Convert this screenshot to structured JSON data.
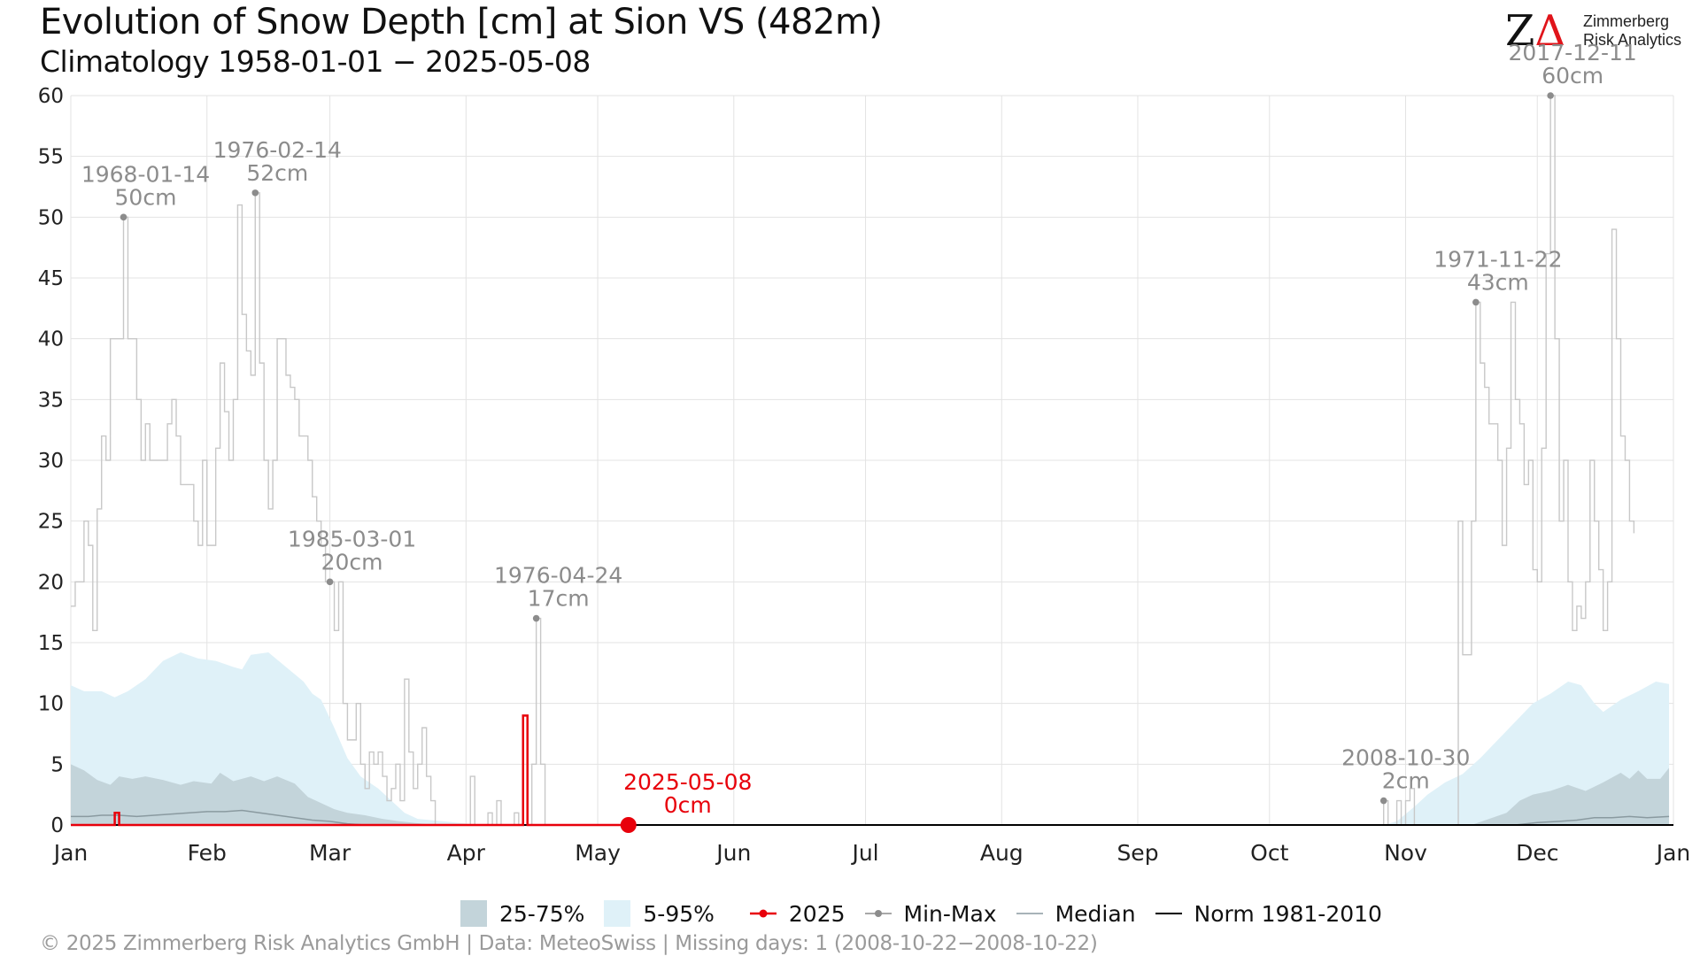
{
  "header": {
    "title": "Evolution of Snow Depth [cm] at Sion  VS (482m)",
    "subtitle": "Climatology 1958-01-01 − 2025-05-08"
  },
  "logo": {
    "mark_z": "Z",
    "mark_delta": "Δ",
    "line1": "Zimmerberg",
    "line2": "Risk Analytics"
  },
  "colors": {
    "band_25_75": "#c3d4da",
    "band_5_95": "#dff1f8",
    "current_year": "#e8000b",
    "minmax": "#c8c8c8",
    "minmax_point": "#8c8c8c",
    "median": "#8a9aa0",
    "norm": "#000000",
    "annotation": "#8c8c8c"
  },
  "legend": {
    "items": [
      {
        "label": "25-75%",
        "kind": "band_iqr"
      },
      {
        "label": "5-95%",
        "kind": "band_outer"
      },
      {
        "label": "2025",
        "kind": "current"
      },
      {
        "label": "Min-Max",
        "kind": "minmax"
      },
      {
        "label": "Median",
        "kind": "median"
      },
      {
        "label": "Norm 1981-2010",
        "kind": "norm"
      }
    ]
  },
  "footer": "©  2025 Zimmerberg Risk Analytics GmbH | Data: MeteoSwiss | Missing days: 1 (2008-10-22−2008-10-22)",
  "chart_data": {
    "type": "area",
    "xlabel": "",
    "ylabel": "",
    "ylim": [
      0,
      60
    ],
    "xlim_day": [
      1,
      366
    ],
    "grid": true,
    "legend_position": "bottom",
    "y_ticks": [
      0,
      5,
      10,
      15,
      20,
      25,
      30,
      35,
      40,
      45,
      50,
      55,
      60
    ],
    "x_ticks": [
      {
        "label": "Jan",
        "day": 1
      },
      {
        "label": "Feb",
        "day": 32
      },
      {
        "label": "Mar",
        "day": 60
      },
      {
        "label": "Apr",
        "day": 91
      },
      {
        "label": "May",
        "day": 121
      },
      {
        "label": "Jun",
        "day": 152
      },
      {
        "label": "Jul",
        "day": 182
      },
      {
        "label": "Aug",
        "day": 213
      },
      {
        "label": "Sep",
        "day": 244
      },
      {
        "label": "Oct",
        "day": 274
      },
      {
        "label": "Nov",
        "day": 305
      },
      {
        "label": "Dec",
        "day": 335
      },
      {
        "label": "Jan",
        "day": 366
      }
    ],
    "band_5_95": {
      "name": "5-95%",
      "points": [
        [
          1,
          11.5
        ],
        [
          4,
          11
        ],
        [
          8,
          11
        ],
        [
          11,
          10.5
        ],
        [
          14,
          11
        ],
        [
          18,
          12
        ],
        [
          22,
          13.5
        ],
        [
          26,
          14.2
        ],
        [
          30,
          13.7
        ],
        [
          34,
          13.5
        ],
        [
          38,
          13
        ],
        [
          40,
          12.8
        ],
        [
          42,
          14
        ],
        [
          46,
          14.2
        ],
        [
          50,
          13
        ],
        [
          54,
          11.8
        ],
        [
          56,
          10.8
        ],
        [
          58,
          10.3
        ],
        [
          61,
          8
        ],
        [
          64,
          5.5
        ],
        [
          67,
          4
        ],
        [
          71,
          3
        ],
        [
          74,
          2
        ],
        [
          77,
          1
        ],
        [
          80,
          0.5
        ],
        [
          83,
          0.4
        ],
        [
          86,
          0.3
        ],
        [
          90,
          0.15
        ],
        [
          95,
          0
        ],
        [
          300,
          0
        ],
        [
          303,
          0.3
        ],
        [
          307,
          1.5
        ],
        [
          310,
          2.5
        ],
        [
          314,
          3.5
        ],
        [
          318,
          4.2
        ],
        [
          322,
          5.5
        ],
        [
          326,
          7
        ],
        [
          330,
          8.5
        ],
        [
          334,
          10
        ],
        [
          338,
          10.8
        ],
        [
          342,
          11.8
        ],
        [
          345,
          11.5
        ],
        [
          348,
          10
        ],
        [
          350,
          9.3
        ],
        [
          354,
          10.3
        ],
        [
          358,
          11
        ],
        [
          362,
          11.8
        ],
        [
          365,
          11.6
        ]
      ]
    },
    "band_25_75": {
      "name": "25-75%",
      "points": [
        [
          1,
          5
        ],
        [
          4,
          4.5
        ],
        [
          7,
          3.7
        ],
        [
          10,
          3.3
        ],
        [
          12,
          4
        ],
        [
          15,
          3.8
        ],
        [
          18,
          4
        ],
        [
          22,
          3.7
        ],
        [
          26,
          3.3
        ],
        [
          29,
          3.6
        ],
        [
          33,
          3.4
        ],
        [
          35,
          4.3
        ],
        [
          38,
          3.6
        ],
        [
          42,
          4
        ],
        [
          45,
          3.6
        ],
        [
          48,
          4
        ],
        [
          52,
          3.4
        ],
        [
          55,
          2.3
        ],
        [
          58,
          1.8
        ],
        [
          61,
          1.3
        ],
        [
          64,
          1
        ],
        [
          68,
          0.8
        ],
        [
          72,
          0.5
        ],
        [
          76,
          0.3
        ],
        [
          80,
          0.15
        ],
        [
          84,
          0
        ],
        [
          320,
          0
        ],
        [
          324,
          0.5
        ],
        [
          328,
          1
        ],
        [
          331,
          2
        ],
        [
          334,
          2.5
        ],
        [
          338,
          2.8
        ],
        [
          342,
          3.3
        ],
        [
          346,
          2.8
        ],
        [
          350,
          3.5
        ],
        [
          354,
          4.3
        ],
        [
          356,
          3.8
        ],
        [
          358,
          4.5
        ],
        [
          360,
          3.8
        ],
        [
          363,
          3.8
        ],
        [
          365,
          4.7
        ]
      ]
    },
    "median": {
      "name": "Median",
      "points": [
        [
          1,
          0.7
        ],
        [
          5,
          0.7
        ],
        [
          8,
          0.8
        ],
        [
          12,
          0.8
        ],
        [
          16,
          0.7
        ],
        [
          20,
          0.8
        ],
        [
          24,
          0.9
        ],
        [
          28,
          1
        ],
        [
          32,
          1.1
        ],
        [
          36,
          1.1
        ],
        [
          40,
          1.2
        ],
        [
          44,
          1
        ],
        [
          48,
          0.8
        ],
        [
          52,
          0.6
        ],
        [
          56,
          0.4
        ],
        [
          60,
          0.3
        ],
        [
          64,
          0.1
        ],
        [
          68,
          0
        ],
        [
          330,
          0
        ],
        [
          335,
          0.2
        ],
        [
          340,
          0.3
        ],
        [
          344,
          0.4
        ],
        [
          348,
          0.6
        ],
        [
          352,
          0.6
        ],
        [
          356,
          0.7
        ],
        [
          360,
          0.6
        ],
        [
          365,
          0.7
        ]
      ]
    },
    "norm": {
      "name": "Norm 1981-2010",
      "points": [
        [
          1,
          0
        ],
        [
          366,
          0
        ]
      ]
    },
    "max_series": {
      "name": "Min-Max",
      "points": [
        [
          1,
          18
        ],
        [
          2,
          20
        ],
        [
          4,
          25
        ],
        [
          5,
          23
        ],
        [
          6,
          16
        ],
        [
          7,
          26
        ],
        [
          8,
          32
        ],
        [
          9,
          30
        ],
        [
          10,
          40
        ],
        [
          13,
          50
        ],
        [
          14,
          40
        ],
        [
          16,
          35
        ],
        [
          17,
          30
        ],
        [
          18,
          33
        ],
        [
          19,
          30
        ],
        [
          23,
          33
        ],
        [
          24,
          35
        ],
        [
          25,
          32
        ],
        [
          26,
          28
        ],
        [
          29,
          25
        ],
        [
          30,
          23
        ],
        [
          31,
          30
        ],
        [
          32,
          23
        ],
        [
          34,
          31
        ],
        [
          35,
          38
        ],
        [
          36,
          34
        ],
        [
          37,
          30
        ],
        [
          38,
          35
        ],
        [
          39,
          51
        ],
        [
          40,
          42
        ],
        [
          41,
          39
        ],
        [
          42,
          37
        ],
        [
          43,
          52
        ],
        [
          44,
          38
        ],
        [
          45,
          30
        ],
        [
          46,
          26
        ],
        [
          47,
          30
        ],
        [
          48,
          40
        ],
        [
          50,
          37
        ],
        [
          51,
          36
        ],
        [
          52,
          35
        ],
        [
          53,
          32
        ],
        [
          55,
          30
        ],
        [
          56,
          27
        ],
        [
          57,
          25
        ],
        [
          58,
          23
        ],
        [
          59,
          20
        ],
        [
          60,
          20
        ],
        [
          61,
          16
        ],
        [
          62,
          20
        ],
        [
          63,
          10
        ],
        [
          64,
          7
        ],
        [
          66,
          10
        ],
        [
          67,
          5
        ],
        [
          68,
          3
        ],
        [
          69,
          6
        ],
        [
          70,
          5
        ],
        [
          71,
          6
        ],
        [
          72,
          4
        ],
        [
          73,
          2
        ],
        [
          74,
          3
        ],
        [
          75,
          5
        ],
        [
          76,
          2
        ],
        [
          77,
          12
        ],
        [
          78,
          6
        ],
        [
          79,
          3
        ],
        [
          80,
          5
        ],
        [
          81,
          8
        ],
        [
          82,
          4
        ],
        [
          83,
          2
        ],
        [
          84,
          0
        ],
        [
          92,
          4
        ],
        [
          93,
          0
        ],
        [
          96,
          1
        ],
        [
          97,
          0
        ],
        [
          98,
          2
        ],
        [
          99,
          0
        ],
        [
          102,
          1
        ],
        [
          103,
          0
        ],
        [
          104,
          9
        ],
        [
          105,
          0
        ],
        [
          106,
          5
        ],
        [
          107,
          17
        ],
        [
          108,
          5
        ],
        [
          109,
          0
        ],
        [
          299,
          0
        ],
        [
          300,
          2
        ],
        [
          301,
          0
        ],
        [
          303,
          2
        ],
        [
          304,
          0
        ],
        [
          305,
          2
        ],
        [
          306,
          3
        ],
        [
          307,
          0
        ],
        [
          317,
          25
        ],
        [
          318,
          14
        ],
        [
          320,
          25
        ],
        [
          321,
          43
        ],
        [
          322,
          38
        ],
        [
          323,
          36
        ],
        [
          324,
          33
        ],
        [
          326,
          30
        ],
        [
          327,
          23
        ],
        [
          328,
          31
        ],
        [
          329,
          43
        ],
        [
          330,
          35
        ],
        [
          331,
          33
        ],
        [
          332,
          28
        ],
        [
          333,
          30
        ],
        [
          334,
          21
        ],
        [
          335,
          20
        ],
        [
          336,
          31
        ],
        [
          337,
          47
        ],
        [
          338,
          60
        ],
        [
          339,
          40
        ],
        [
          340,
          25
        ],
        [
          341,
          30
        ],
        [
          342,
          20
        ],
        [
          343,
          16
        ],
        [
          344,
          18
        ],
        [
          345,
          17
        ],
        [
          346,
          20
        ],
        [
          347,
          30
        ],
        [
          348,
          25
        ],
        [
          349,
          21
        ],
        [
          350,
          16
        ],
        [
          351,
          20
        ],
        [
          352,
          49
        ],
        [
          353,
          40
        ],
        [
          354,
          32
        ],
        [
          355,
          30
        ],
        [
          356,
          25
        ],
        [
          357,
          24
        ]
      ]
    },
    "current_2025": {
      "name": "2025",
      "points": [
        [
          1,
          0
        ],
        [
          11,
          0
        ],
        [
          11,
          1
        ],
        [
          12,
          1
        ],
        [
          12,
          0
        ],
        [
          104,
          0
        ],
        [
          104,
          9
        ],
        [
          105,
          9
        ],
        [
          105,
          0
        ],
        [
          128,
          0
        ]
      ],
      "last_day": 128,
      "last_value": 0
    },
    "annotations": [
      {
        "date": "1968-01-14",
        "value": "50cm",
        "day": 13,
        "y": 50
      },
      {
        "date": "1976-02-14",
        "value": "52cm",
        "day": 43,
        "y": 52
      },
      {
        "date": "1985-03-01",
        "value": "20cm",
        "day": 60,
        "y": 20
      },
      {
        "date": "1976-04-24",
        "value": "17cm",
        "day": 107,
        "y": 17
      },
      {
        "date": "2008-10-30",
        "value": "2cm",
        "day": 300,
        "y": 2
      },
      {
        "date": "1971-11-22",
        "value": "43cm",
        "day": 321,
        "y": 43
      },
      {
        "date": "2017-12-11",
        "value": "60cm",
        "day": 338,
        "y": 60
      }
    ],
    "current_label": {
      "date": "2025-05-08",
      "value": "0cm"
    }
  }
}
